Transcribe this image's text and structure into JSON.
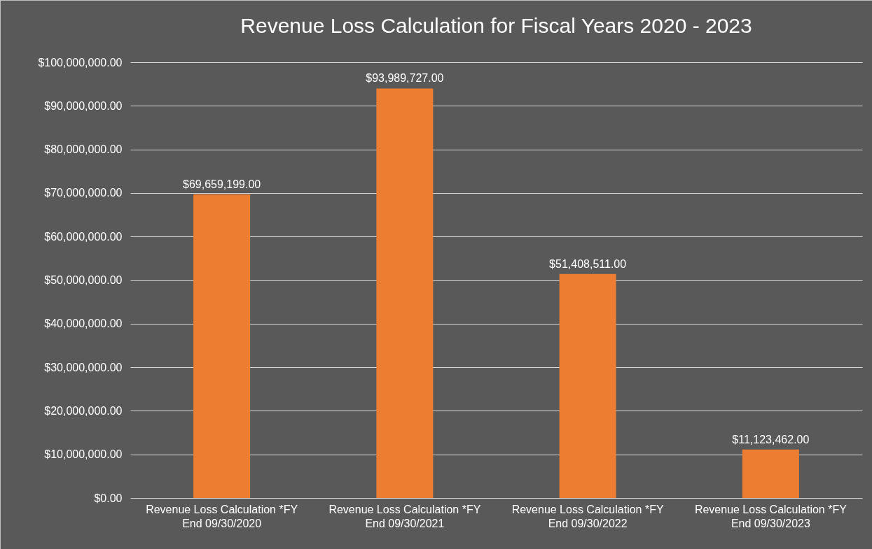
{
  "chart_data": {
    "type": "bar",
    "title": "Revenue Loss Calculation for Fiscal Years 2020 - 2023",
    "categories": [
      "Revenue Loss Calculation *FY\nEnd 09/30/2020",
      "Revenue Loss Calculation *FY\nEnd 09/30/2021",
      "Revenue Loss Calculation *FY\nEnd 09/30/2022",
      "Revenue Loss Calculation *FY\nEnd 09/30/2023"
    ],
    "values": [
      69659199,
      93989727,
      51408511,
      11123462
    ],
    "value_labels": [
      "$69,659,199.00",
      "$93,989,727.00",
      "$51,408,511.00",
      "$11,123,462.00"
    ],
    "color": "#ed7d31",
    "ylim": [
      0,
      100000000
    ],
    "yticks": [
      {
        "value": 0,
        "label": "$0.00"
      },
      {
        "value": 10000000,
        "label": "$10,000,000.00"
      },
      {
        "value": 20000000,
        "label": "$20,000,000.00"
      },
      {
        "value": 30000000,
        "label": "$30,000,000.00"
      },
      {
        "value": 40000000,
        "label": "$40,000,000.00"
      },
      {
        "value": 50000000,
        "label": "$50,000,000.00"
      },
      {
        "value": 60000000,
        "label": "$60,000,000.00"
      },
      {
        "value": 70000000,
        "label": "$70,000,000.00"
      },
      {
        "value": 80000000,
        "label": "$80,000,000.00"
      },
      {
        "value": 90000000,
        "label": "$90,000,000.00"
      },
      {
        "value": 100000000,
        "label": "$100,000,000.00"
      }
    ],
    "grid": true
  }
}
